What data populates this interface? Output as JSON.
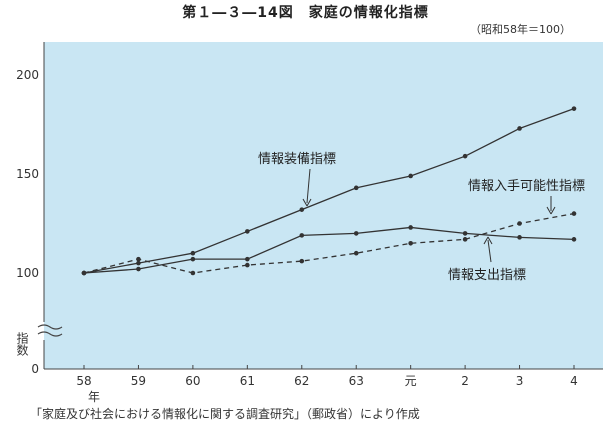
{
  "figure": {
    "title": "第１―３―14図　家庭の情報化指標",
    "subtitle": "（昭和58年＝100）",
    "source": "「家庭及び社会における情報化に関する調査研究」（郵政省）により作成"
  },
  "colors": {
    "plot_bg": "#c9e6f3",
    "line": "#333333",
    "axis": "#444444"
  },
  "chart_data": {
    "type": "line",
    "title": "",
    "ylabel": "指数",
    "categories": [
      "58",
      "59",
      "60",
      "61",
      "62",
      "63",
      "元",
      "2",
      "3",
      "4"
    ],
    "x_unit_label": "年",
    "ylim": [
      0,
      200
    ],
    "y_ticks": [
      0,
      100,
      150,
      200
    ],
    "axis_break": true,
    "grid": false,
    "series": [
      {
        "name": "情報装備指標",
        "style": "solid",
        "values": [
          100,
          105,
          110,
          121,
          132,
          143,
          149,
          159,
          173,
          183
        ]
      },
      {
        "name": "情報入手可能性指標",
        "style": "dashed",
        "values": [
          100,
          107,
          100,
          104,
          106,
          110,
          115,
          117,
          125,
          130
        ]
      },
      {
        "name": "情報支出指標",
        "style": "solid",
        "values": [
          100,
          102,
          107,
          107,
          119,
          120,
          123,
          120,
          118,
          117
        ]
      }
    ]
  }
}
